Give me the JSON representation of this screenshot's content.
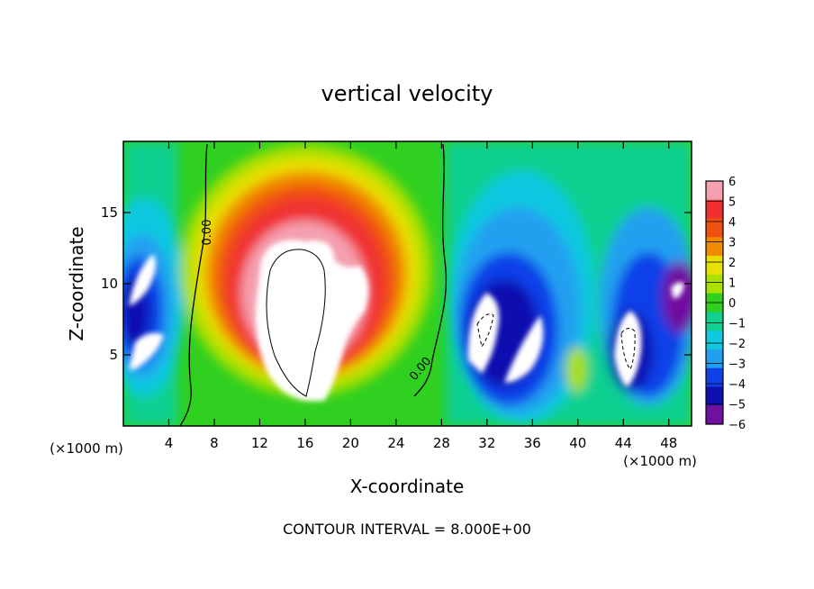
{
  "chart_data": {
    "type": "heatmap",
    "title": "vertical velocity",
    "xlabel": "X-coordinate",
    "ylabel": "Z-coordinate",
    "x_unit_left": "(×1000 m)",
    "x_unit_right": "(×1000 m)",
    "xlim": [
      0,
      50
    ],
    "ylim": [
      0,
      20
    ],
    "x_ticks": [
      4,
      8,
      12,
      16,
      20,
      24,
      28,
      32,
      36,
      40,
      44,
      48
    ],
    "x_tick_labels": [
      "4",
      "8",
      "12",
      "16",
      "20",
      "24",
      "28",
      "32",
      "36",
      "40",
      "44",
      "48"
    ],
    "y_ticks": [
      5,
      10,
      15
    ],
    "y_tick_labels": [
      "5",
      "10",
      "15"
    ],
    "colorbar": {
      "min": -6,
      "max": 6,
      "tick_labels": [
        "6",
        "5",
        "4",
        "3",
        "2",
        "1",
        "0",
        "−1",
        "−2",
        "−3",
        "−4",
        "−5",
        "−6"
      ],
      "colors": [
        "#f4a0b0",
        "#f03030",
        "#f05010",
        "#f08a00",
        "#e8e000",
        "#a8e000",
        "#30d020",
        "#10d090",
        "#10c8e0",
        "#20a0f0",
        "#1040e8",
        "#1010b0",
        "#7010a0"
      ]
    },
    "contour_label": "0.00",
    "footnote": "CONTOUR INTERVAL = 8.000E+00"
  }
}
